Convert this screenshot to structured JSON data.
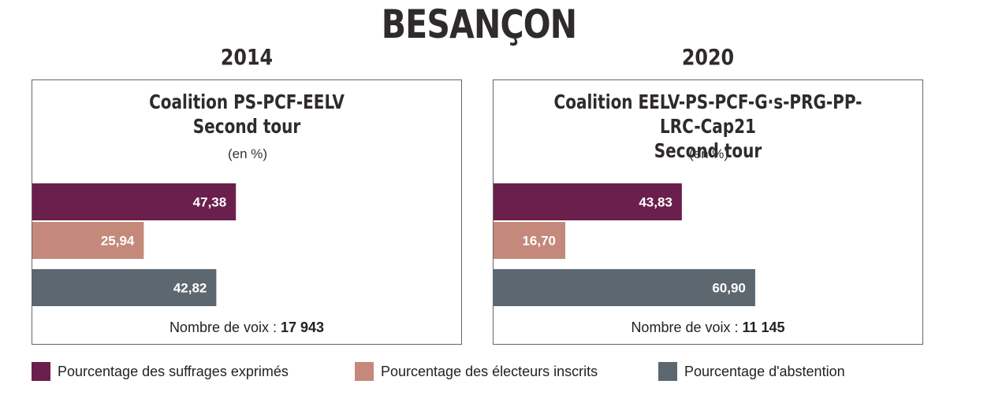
{
  "title": "BESANÇON",
  "unit": "(en %)",
  "footer_label": "Nombre de voix : ",
  "colors": {
    "exprimes": "#6b1f4c",
    "inscrits": "#c4897a",
    "abstention": "#5c6770"
  },
  "legend": [
    {
      "key": "exprimes",
      "label": "Pourcentage des suffrages exprimés"
    },
    {
      "key": "inscrits",
      "label": "Pourcentage des électeurs inscrits"
    },
    {
      "key": "abstention",
      "label": "Pourcentage d'abstention"
    }
  ],
  "chart_data": [
    {
      "type": "bar",
      "year": "2014",
      "title_line1": "Coalition PS-PCF-EELV",
      "title_line2": "Second tour",
      "series": [
        {
          "key": "exprimes",
          "value": 47.38,
          "label": "47,38"
        },
        {
          "key": "inscrits",
          "value": 25.94,
          "label": "25,94"
        },
        {
          "key": "abstention",
          "value": 42.82,
          "label": "42,82"
        }
      ],
      "votes": "17 943"
    },
    {
      "type": "bar",
      "year": "2020",
      "title_line1": "Coalition EELV-PS-PCF-G·s-PRG-PP-LRC-Cap21",
      "title_line2": "Second tour",
      "series": [
        {
          "key": "exprimes",
          "value": 43.83,
          "label": "43,83"
        },
        {
          "key": "inscrits",
          "value": 16.7,
          "label": "16,70"
        },
        {
          "key": "abstention",
          "value": 60.9,
          "label": "60,90"
        }
      ],
      "votes": "11 145"
    }
  ]
}
